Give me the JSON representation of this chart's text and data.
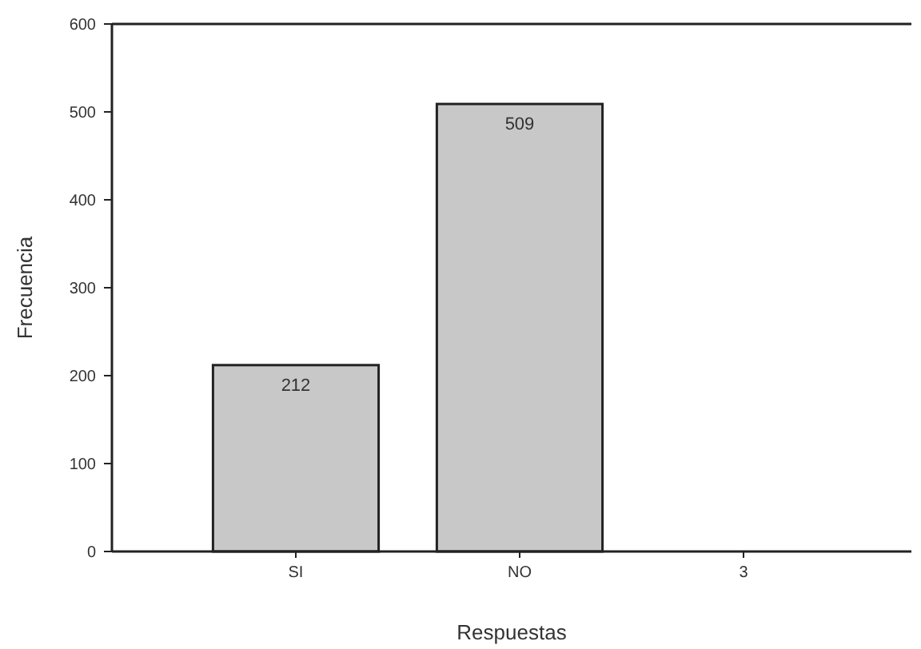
{
  "chart_data": {
    "type": "bar",
    "xlabel": "Respuestas",
    "ylabel": "Frecuencia",
    "categories": [
      "SI",
      "NO",
      "3"
    ],
    "values": [
      212,
      509,
      null
    ],
    "value_labels": [
      "212",
      "509",
      null
    ],
    "color": "#c8c8c8",
    "ylim": [
      0,
      600
    ],
    "yticks": [
      0,
      100,
      200,
      300,
      400,
      500,
      600
    ],
    "grid": false
  }
}
